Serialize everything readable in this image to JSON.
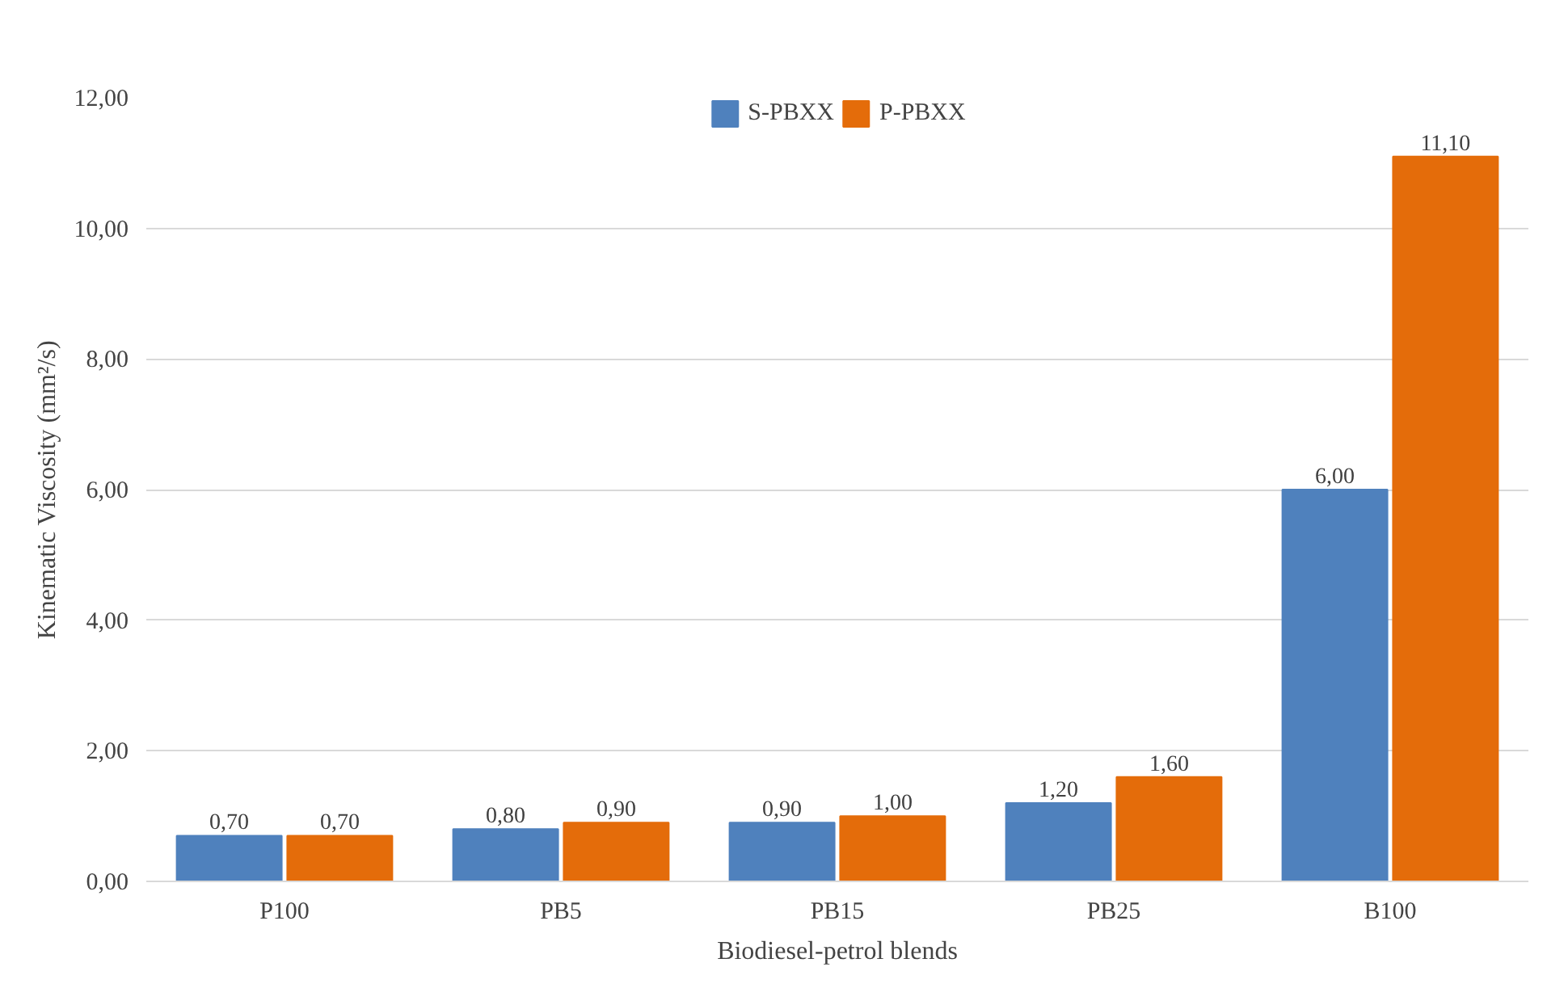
{
  "chart_data": {
    "type": "bar",
    "xlabel": "Biodiesel-petrol blends",
    "ylabel": "Kinematic Viscosity (mm²/s)",
    "categories": [
      "P100",
      "PB5",
      "PB15",
      "PB25",
      "B100"
    ],
    "series": [
      {
        "name": "S-PBXX",
        "color": "#4f81bd",
        "values": [
          0.7,
          0.8,
          0.9,
          1.2,
          6.0
        ],
        "value_labels": [
          "0,70",
          "0,80",
          "0,90",
          "1,20",
          "6,00"
        ]
      },
      {
        "name": "P-PBXX",
        "color": "#e46c0a",
        "values": [
          0.7,
          0.9,
          1.0,
          1.6,
          11.1
        ],
        "value_labels": [
          "0,70",
          "0,90",
          "1,00",
          "1,60",
          "11,10"
        ]
      }
    ],
    "ylim": [
      0,
      12
    ],
    "yticks": [
      {
        "value": 0,
        "label": "0,00"
      },
      {
        "value": 2,
        "label": "2,00"
      },
      {
        "value": 4,
        "label": "4,00"
      },
      {
        "value": 6,
        "label": "6,00"
      },
      {
        "value": 8,
        "label": "8,00"
      },
      {
        "value": 10,
        "label": "10,00"
      },
      {
        "value": 12,
        "label": "12,00"
      }
    ],
    "grid": "y",
    "legend": "top"
  }
}
